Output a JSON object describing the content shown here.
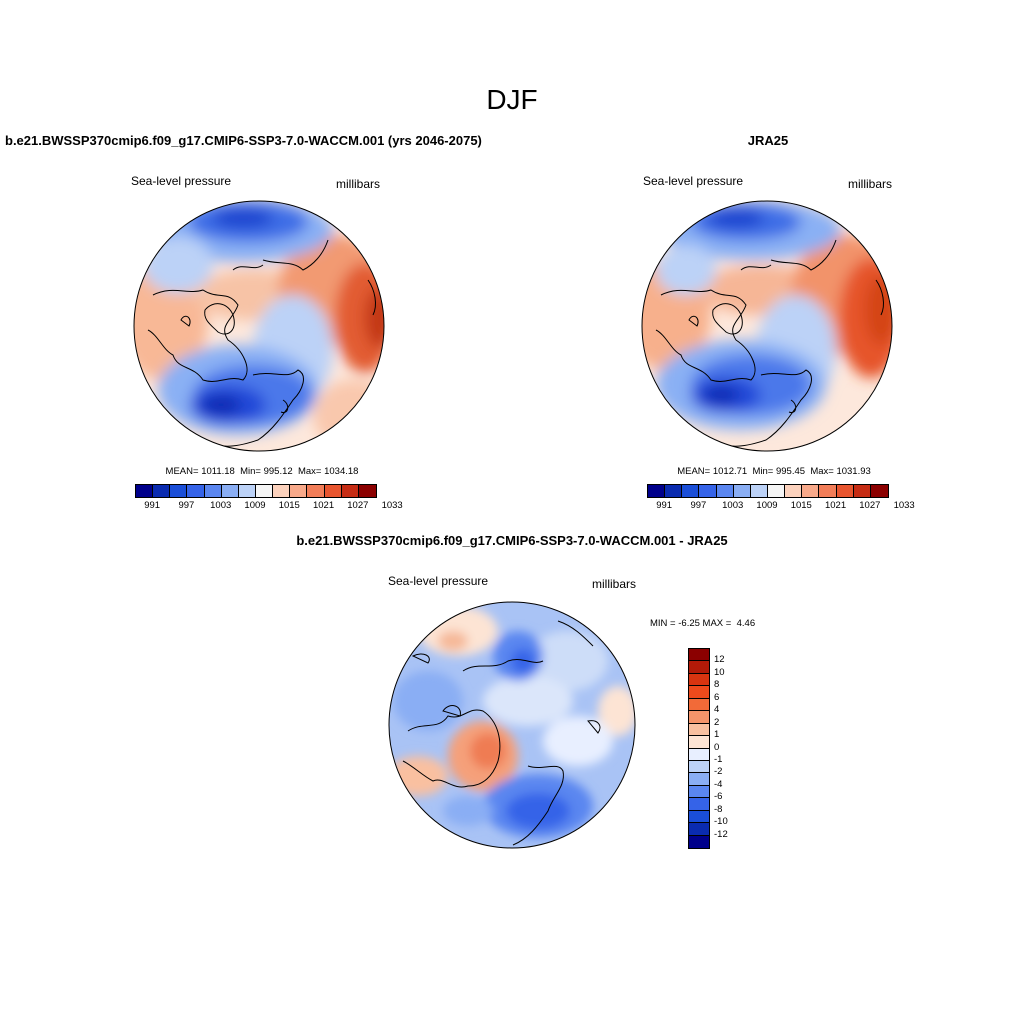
{
  "page": {
    "title": "DJF"
  },
  "panels": {
    "model": {
      "title": "b.e21.BWSSP370cmip6.f09_g17.CMIP6-SSP3-7.0-WACCM.001 (yrs 2046-2075)",
      "left_label": "Sea-level pressure",
      "right_label": "millibars",
      "stats": {
        "mean_label": "MEAN=",
        "mean": "1011.18",
        "min_label": "Min=",
        "min": "995.12",
        "max_label": "Max=",
        "max": "1034.18"
      }
    },
    "obs": {
      "title": "JRA25",
      "left_label": "Sea-level pressure",
      "right_label": "millibars",
      "stats": {
        "mean_label": "MEAN=",
        "mean": "1012.71",
        "min_label": "Min=",
        "min": "995.45",
        "max_label": "Max=",
        "max": "1031.93"
      }
    },
    "diff": {
      "title": "b.e21.BWSSP370cmip6.f09_g17.CMIP6-SSP3-7.0-WACCM.001 - JRA25",
      "left_label": "Sea-level pressure",
      "right_label": "millibars",
      "min_label": "MIN =",
      "min": "-6.25",
      "max_label": "MAX =",
      "max": "4.46"
    }
  },
  "colorbars": {
    "absolute": {
      "tick_labels": [
        "991",
        "997",
        "1003",
        "1009",
        "1015",
        "1021",
        "1027",
        "1033"
      ],
      "colors": [
        "#00008b",
        "#0a2bb0",
        "#1a4ed8",
        "#3563e8",
        "#5a86f0",
        "#8aaef4",
        "#bcd2f7",
        "#f5f5f5",
        "#fcd2bd",
        "#f8a98a",
        "#f27d58",
        "#e8552f",
        "#c62c14",
        "#8b0000"
      ]
    },
    "difference": {
      "tick_labels": [
        "12",
        "10",
        "8",
        "6",
        "4",
        "2",
        "1",
        "0",
        "-1",
        "-2",
        "-4",
        "-6",
        "-8",
        "-10",
        "-12"
      ],
      "colors": [
        "#8b0000",
        "#b21a08",
        "#d83410",
        "#ed4a1c",
        "#f26a38",
        "#f5946a",
        "#f9c0a0",
        "#fde4d4",
        "#e8efff",
        "#bcd2f7",
        "#8aaef4",
        "#5a86f0",
        "#3563e8",
        "#1a4ed8",
        "#0a2bb0",
        "#00008b"
      ]
    }
  }
}
